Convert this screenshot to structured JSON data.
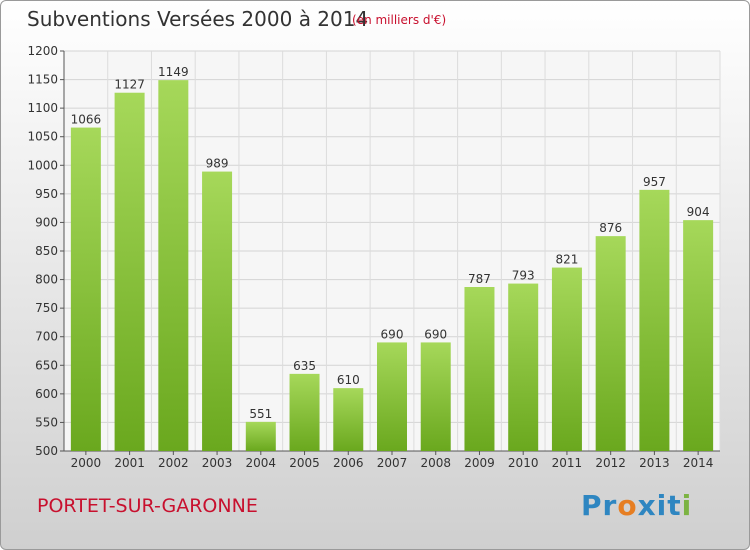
{
  "header": {
    "title": "Subventions Versées 2000 à 2014",
    "subtitle": "(en milliers d'€)"
  },
  "footer": {
    "commune": "PORTET-SUR-GARONNE",
    "logo_text": "Proxiti",
    "logo_letters": [
      "P",
      "r",
      "o",
      "x",
      "i",
      "t",
      "i"
    ],
    "logo_colors": [
      "#2e86c1",
      "#2e86c1",
      "#e67e22",
      "#2e86c1",
      "#2e86c1",
      "#2e86c1",
      "#7cb342"
    ]
  },
  "colors": {
    "bar_light": "#a6d85a",
    "bar_dark": "#6aa81e",
    "title": "#333333",
    "accent_red": "#c8102e"
  },
  "chart_data": {
    "type": "bar",
    "categories": [
      "2000",
      "2001",
      "2002",
      "2003",
      "2004",
      "2005",
      "2006",
      "2007",
      "2008",
      "2009",
      "2010",
      "2011",
      "2012",
      "2013",
      "2014"
    ],
    "values": [
      1066,
      1127,
      1149,
      989,
      551,
      635,
      610,
      690,
      690,
      787,
      793,
      821,
      876,
      957,
      904
    ],
    "title": "Subventions Versées 2000 à 2014",
    "ylim": [
      500,
      1200
    ],
    "yticks": [
      500,
      550,
      600,
      650,
      700,
      750,
      800,
      850,
      900,
      950,
      1000,
      1050,
      1100,
      1150,
      1200
    ],
    "grid": true,
    "legend": "none"
  }
}
